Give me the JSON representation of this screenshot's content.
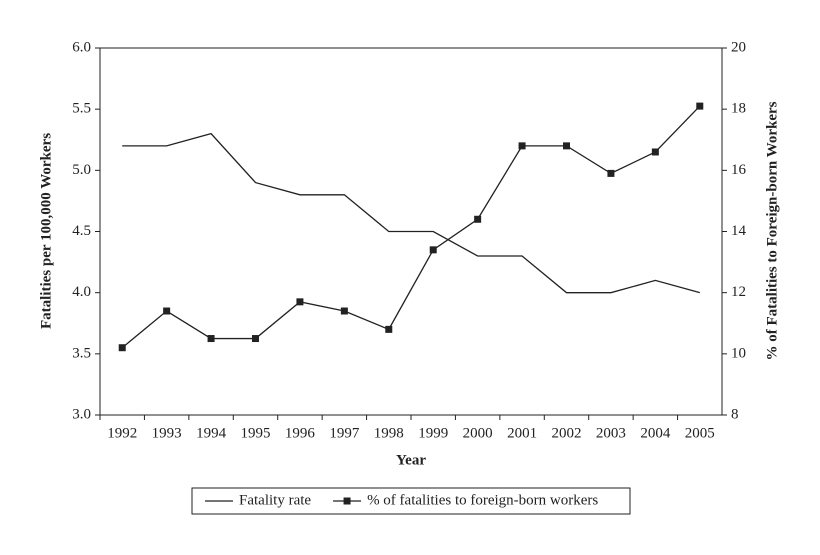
{
  "chart_data": {
    "type": "line",
    "x_label": "Year",
    "y_label": "Fatalities per 100,000 Workers",
    "y2_label": "% of Fatalities to Foreign-born Workers",
    "categories": [
      "1992",
      "1993",
      "1994",
      "1995",
      "1996",
      "1997",
      "1998",
      "1999",
      "2000",
      "2001",
      "2002",
      "2003",
      "2004",
      "2005"
    ],
    "series": [
      {
        "name": "Fatality rate",
        "color": "#222222",
        "marker": "none",
        "values": [
          5.2,
          5.2,
          5.3,
          4.9,
          4.8,
          4.8,
          4.5,
          4.5,
          4.3,
          4.3,
          4.0,
          4.0,
          4.1,
          4.0
        ]
      },
      {
        "name": "% of fatalities to foreign-born workers",
        "color": "#222222",
        "marker": "square",
        "axis": "y2",
        "values": [
          10.2,
          11.4,
          10.5,
          10.5,
          11.7,
          11.4,
          10.8,
          13.4,
          14.4,
          16.8,
          16.8,
          15.9,
          16.6,
          18.1
        ]
      }
    ],
    "ylim": [
      3,
      6
    ],
    "yticks": [
      {
        "value": 3,
        "label": "3.0"
      },
      {
        "value": 3.5,
        "label": "3.5"
      },
      {
        "value": 4,
        "label": "4.0"
      },
      {
        "value": 4.5,
        "label": "4.5"
      },
      {
        "value": 5,
        "label": "5.0"
      },
      {
        "value": 5.5,
        "label": "5.5"
      },
      {
        "value": 6,
        "label": "6.0"
      }
    ],
    "y2lim": [
      8,
      20
    ],
    "y2ticks": [
      8,
      10,
      12,
      14,
      16,
      18,
      20
    ],
    "legend": "bottom"
  }
}
